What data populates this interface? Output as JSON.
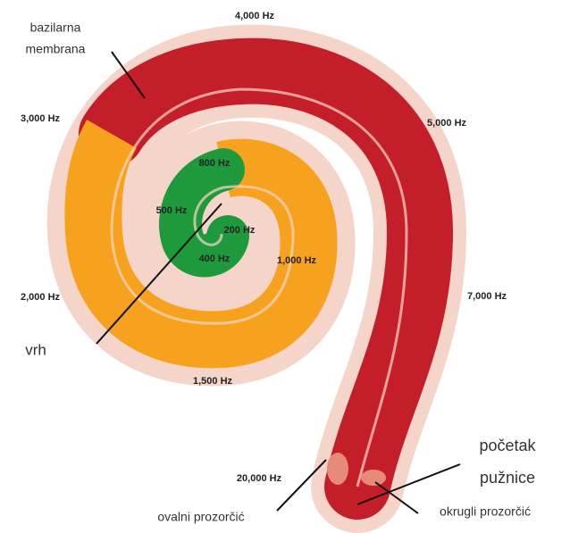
{
  "frequencies": [
    "4,000 Hz",
    "3,000 Hz",
    "5,000 Hz",
    "800 Hz",
    "500 Hz",
    "200 Hz",
    "400 Hz",
    "1,000 Hz",
    "2,000 Hz",
    "7,000 Hz",
    "1,500 Hz",
    "20,000 Hz"
  ],
  "labels": {
    "basilar_membrane": [
      "bazilarna",
      "membrana"
    ],
    "apex": "vrh",
    "cochlea_start": [
      "početak",
      "pužnice"
    ],
    "oval_window": "ovalni prozorčić",
    "round_window": "okrugli prozorčić"
  }
}
